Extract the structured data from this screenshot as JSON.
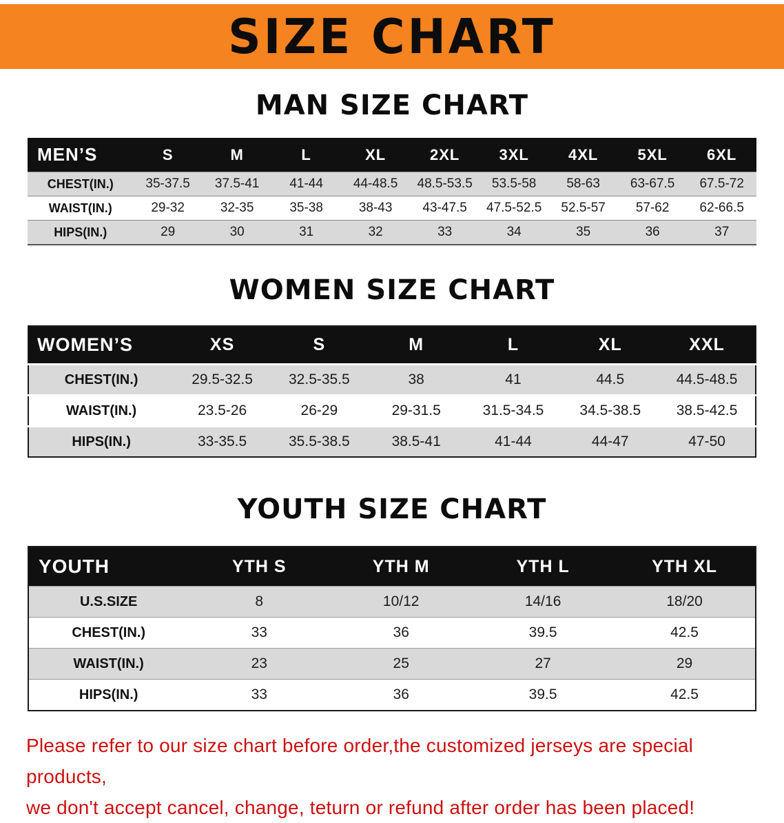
{
  "banner": {
    "title": "SIZE CHART"
  },
  "sections": [
    {
      "id": "men",
      "heading": "MAN SIZE CHART",
      "table": {
        "label": "MEN’S",
        "sizes": [
          "S",
          "M",
          "L",
          "XL",
          "2XL",
          "3XL",
          "4XL",
          "5XL",
          "6XL"
        ],
        "rows": [
          {
            "label": "CHEST(IN.)",
            "values": [
              "35-37.5",
              "37.5-41",
              "41-44",
              "44-48.5",
              "48.5-53.5",
              "53.5-58",
              "58-63",
              "63-67.5",
              "67.5-72"
            ]
          },
          {
            "label": "WAIST(IN.)",
            "values": [
              "29-32",
              "32-35",
              "35-38",
              "38-43",
              "43-47.5",
              "47.5-52.5",
              "52.5-57",
              "57-62",
              "62-66.5"
            ]
          },
          {
            "label": "HIPS(IN.)",
            "values": [
              "29",
              "30",
              "31",
              "32",
              "33",
              "34",
              "35",
              "36",
              "37"
            ]
          }
        ]
      }
    },
    {
      "id": "women",
      "heading": "WOMEN SIZE CHART",
      "table": {
        "label": "WOMEN’S",
        "sizes": [
          "XS",
          "S",
          "M",
          "L",
          "XL",
          "XXL"
        ],
        "rows": [
          {
            "label": "CHEST(IN.)",
            "values": [
              "29.5-32.5",
              "32.5-35.5",
              "38",
              "41",
              "44.5",
              "44.5-48.5"
            ]
          },
          {
            "label": "WAIST(IN.)",
            "values": [
              "23.5-26",
              "26-29",
              "29-31.5",
              "31.5-34.5",
              "34.5-38.5",
              "38.5-42.5"
            ]
          },
          {
            "label": "HIPS(IN.)",
            "values": [
              "33-35.5",
              "35.5-38.5",
              "38.5-41",
              "41-44",
              "44-47",
              "47-50"
            ]
          }
        ]
      }
    },
    {
      "id": "youth",
      "heading": "YOUTH SIZE CHART",
      "table": {
        "label": "YOUTH",
        "sizes": [
          "YTH S",
          "YTH M",
          "YTH L",
          "YTH XL"
        ],
        "rows": [
          {
            "label": "U.S.SIZE",
            "values": [
              "8",
              "10/12",
              "14/16",
              "18/20"
            ]
          },
          {
            "label": "CHEST(IN.)",
            "values": [
              "33",
              "36",
              "39.5",
              "42.5"
            ]
          },
          {
            "label": "WAIST(IN.)",
            "values": [
              "23",
              "25",
              "27",
              "29"
            ]
          },
          {
            "label": "HIPS(IN.)",
            "values": [
              "33",
              "36",
              "39.5",
              "42.5"
            ]
          }
        ]
      }
    }
  ],
  "disclaimer": {
    "line1": "Please refer to our size chart before order,the customized jerseys are special products,",
    "line2": "we don't accept cancel, change, teturn or refund after order has been placed!"
  },
  "colors": {
    "banner_bg": "#f5831f",
    "header_bg": "#101010",
    "row_alt_bg": "#d9d9d9",
    "disclaimer_text": "#cc1111"
  }
}
